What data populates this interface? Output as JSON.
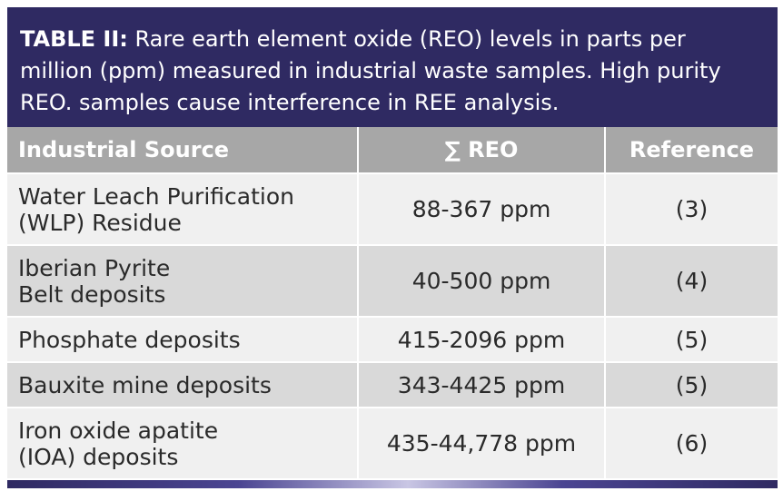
{
  "caption": {
    "label": "TABLE II:",
    "text": " Rare earth element oxide (REO) levels in parts per million (ppm) measured in industrial waste samples. High purity REO. samples cause interference in REE analysis."
  },
  "table": {
    "headers": [
      "Industrial Source",
      "∑ REO",
      "Reference"
    ],
    "rows": [
      {
        "source_line1": "Water Leach Purification",
        "source_line2": "(WLP) Residue",
        "reo": "88-367 ppm",
        "ref": "(3)"
      },
      {
        "source_line1": "Iberian Pyrite",
        "source_line2": "Belt deposits",
        "reo": "40-500 ppm",
        "ref": "(4)"
      },
      {
        "source_line1": "Phosphate deposits",
        "source_line2": "",
        "reo": "415-2096 ppm",
        "ref": "(5)"
      },
      {
        "source_line1": "Bauxite mine deposits",
        "source_line2": "",
        "reo": "343-4425 ppm",
        "ref": "(5)"
      },
      {
        "source_line1": "Iron oxide apatite",
        "source_line2": "(IOA) deposits",
        "reo": "435-44,778 ppm",
        "ref": "(6)"
      }
    ]
  },
  "colors": {
    "caption_bg": "#2f2a62",
    "header_bg": "#a7a7a7",
    "row_light": "#f0f0f0",
    "row_dark": "#d9d9d9"
  }
}
